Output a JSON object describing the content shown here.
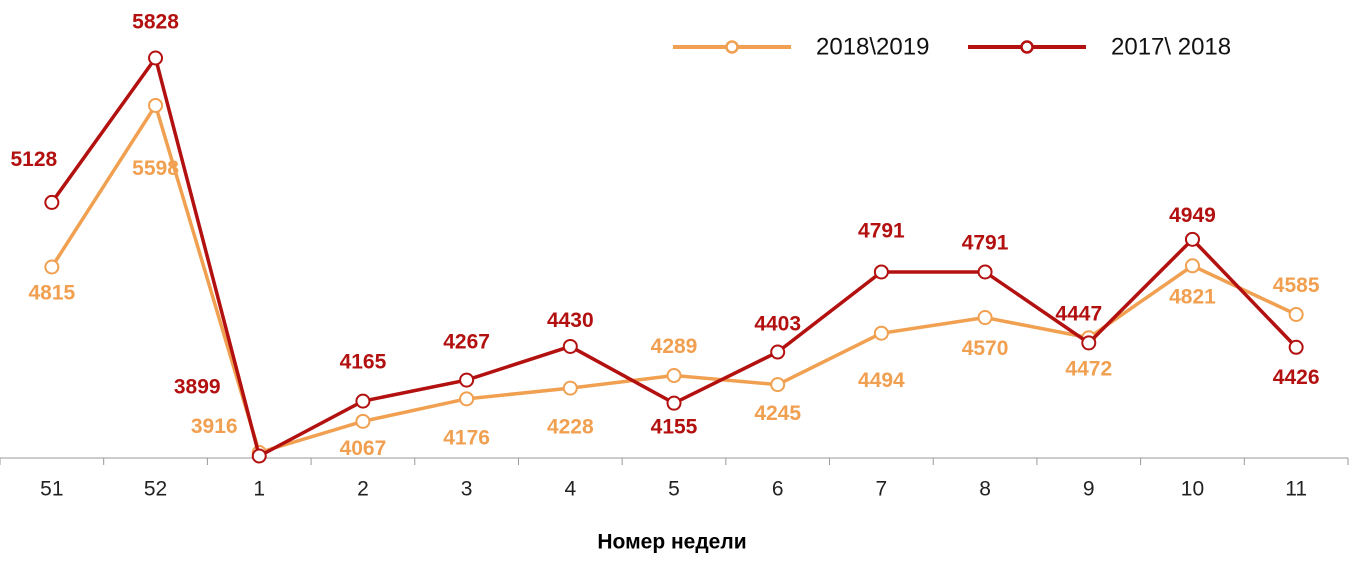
{
  "chart_data": {
    "type": "line",
    "x_label": "Номер недели",
    "categories": [
      "51",
      "52",
      "1",
      "2",
      "3",
      "4",
      "5",
      "6",
      "7",
      "8",
      "9",
      "10",
      "11"
    ],
    "series": [
      {
        "name": "2018\\2019",
        "color": "#f0a050",
        "values": [
          4815,
          5598,
          3916,
          4067,
          4176,
          4228,
          4289,
          4245,
          4494,
          4570,
          4472,
          4821,
          4585
        ]
      },
      {
        "name": "2017\\ 2018",
        "color": "#b31010",
        "values": [
          5128,
          5828,
          3899,
          4165,
          4267,
          4430,
          4155,
          4403,
          4791,
          4791,
          4447,
          4949,
          4426
        ]
      }
    ],
    "legend": "top-right"
  }
}
